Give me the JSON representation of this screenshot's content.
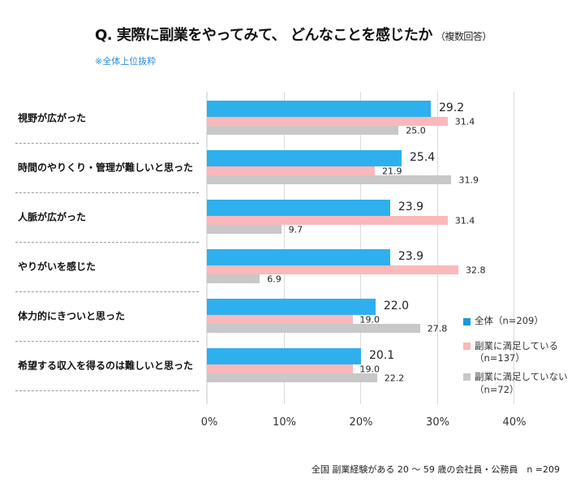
{
  "chart_data": {
    "type": "bar",
    "orientation": "horizontal",
    "title": "Q. 実際に副業をやってみて、 どんなことを感じたか",
    "title_note": "（複数回答）",
    "subtitle": "※全体上位抜粋",
    "xlabel": "",
    "ylabel": "",
    "xlim": [
      0,
      40
    ],
    "xticks": [
      0,
      10,
      20,
      30,
      40
    ],
    "xtick_labels": [
      "0%",
      "10%",
      "20%",
      "30%",
      "40%"
    ],
    "grid": true,
    "legend_position": "right",
    "categories": [
      "視野が広がった",
      "時間のやりくり・管理が難しいと思った",
      "人脈が広がった",
      "やりがいを感じた",
      "体力的にきついと思った",
      "希望する収入を得るのは難しいと思った"
    ],
    "series": [
      {
        "name": "全体（n=209）",
        "legend_lines": [
          "全体（n=209）"
        ],
        "color": "#2EB0EE",
        "values": [
          29.2,
          25.4,
          23.9,
          23.9,
          22.0,
          20.1
        ],
        "value_labels": [
          "29.2",
          "25.4",
          "23.9",
          "23.9",
          "22.0",
          "20.1"
        ]
      },
      {
        "name": "副業に満足している（n=137）",
        "legend_lines": [
          "副業に満足している",
          "（n=137）"
        ],
        "color": "#FBB8BA",
        "values": [
          31.4,
          21.9,
          31.4,
          32.8,
          19.0,
          19.0
        ],
        "value_labels": [
          "31.4",
          "21.9",
          "31.4",
          "32.8",
          "19.0",
          "19.0"
        ]
      },
      {
        "name": "副業に満足していない（n=72）",
        "legend_lines": [
          "副業に満足していない",
          "（n=72）"
        ],
        "color": "#C8C8C8",
        "values": [
          25.0,
          31.9,
          9.7,
          6.9,
          27.8,
          22.2
        ],
        "value_labels": [
          "25.0",
          "31.9",
          "9.7",
          "6.9",
          "27.8",
          "22.2"
        ]
      }
    ],
    "footnote": "全国 副業経験がある 20 ～ 59 歳の会社員・公務員　n =209"
  }
}
